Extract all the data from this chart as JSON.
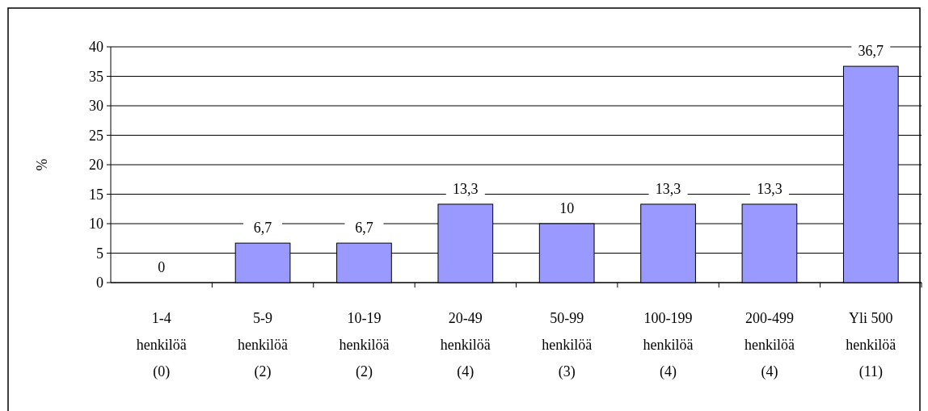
{
  "chart_data": {
    "type": "bar",
    "ylabel": "%",
    "categories": [
      "1-4\nhenkilöä\n(0)",
      "5-9\nhenkilöä\n(2)",
      "10-19\nhenkilöä\n(2)",
      "20-49\nhenkilöä\n(4)",
      "50-99\nhenkilöä\n(3)",
      "100-199\nhenkilöä\n(4)",
      "200-499\nhenkilöä\n(4)",
      "Yli 500\nhenkilöä\n(11)"
    ],
    "values": [
      0,
      6.7,
      6.7,
      13.3,
      10,
      13.3,
      13.3,
      36.7
    ],
    "value_labels": [
      "0",
      "6,7",
      "6,7",
      "13,3",
      "10",
      "13,3",
      "13,3",
      "36,7"
    ],
    "color": "#9999ff",
    "ylim": [
      0,
      40
    ],
    "yticks": [
      0,
      5,
      10,
      15,
      20,
      25,
      30,
      35,
      40
    ],
    "grid": "y"
  }
}
